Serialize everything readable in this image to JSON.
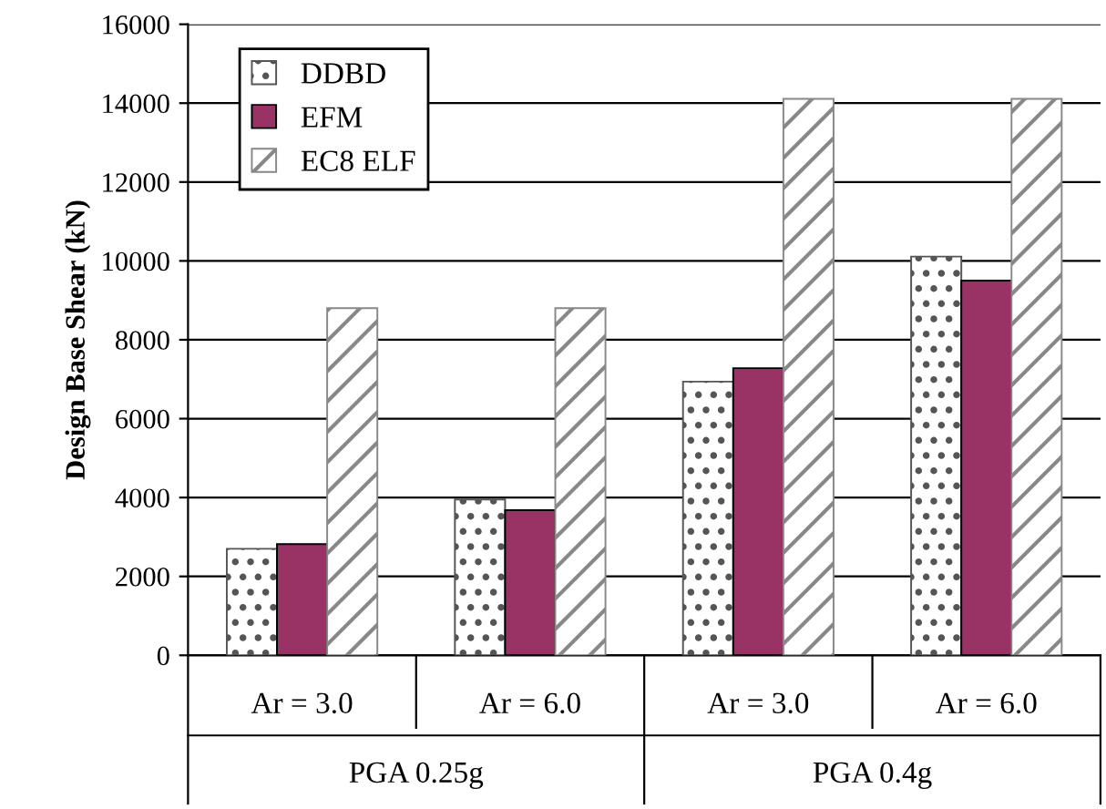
{
  "chart_data": {
    "type": "bar",
    "ylabel": "Design Base Shear (kN)",
    "categories": [
      "Ar = 3.0",
      "Ar = 6.0",
      "Ar = 3.0",
      "Ar = 6.0"
    ],
    "series": [
      {
        "name": "DDBD",
        "color": "#555555",
        "values": [
          2700,
          3950,
          6940,
          10110
        ]
      },
      {
        "name": "EFM",
        "color": "#993366",
        "values": [
          2820,
          3680,
          7280,
          9500
        ]
      },
      {
        "name": "EC8 ELF",
        "color": "#888888",
        "values": [
          8800,
          8800,
          14110,
          14110
        ]
      }
    ],
    "annotations": [
      "PGA 0.25g",
      "PGA 0.4g"
    ],
    "ylim": [
      0,
      16000
    ],
    "yticks": [
      0,
      2000,
      4000,
      6000,
      8000,
      10000,
      12000,
      14000,
      16000
    ],
    "grid": "y",
    "legend": "top left"
  }
}
